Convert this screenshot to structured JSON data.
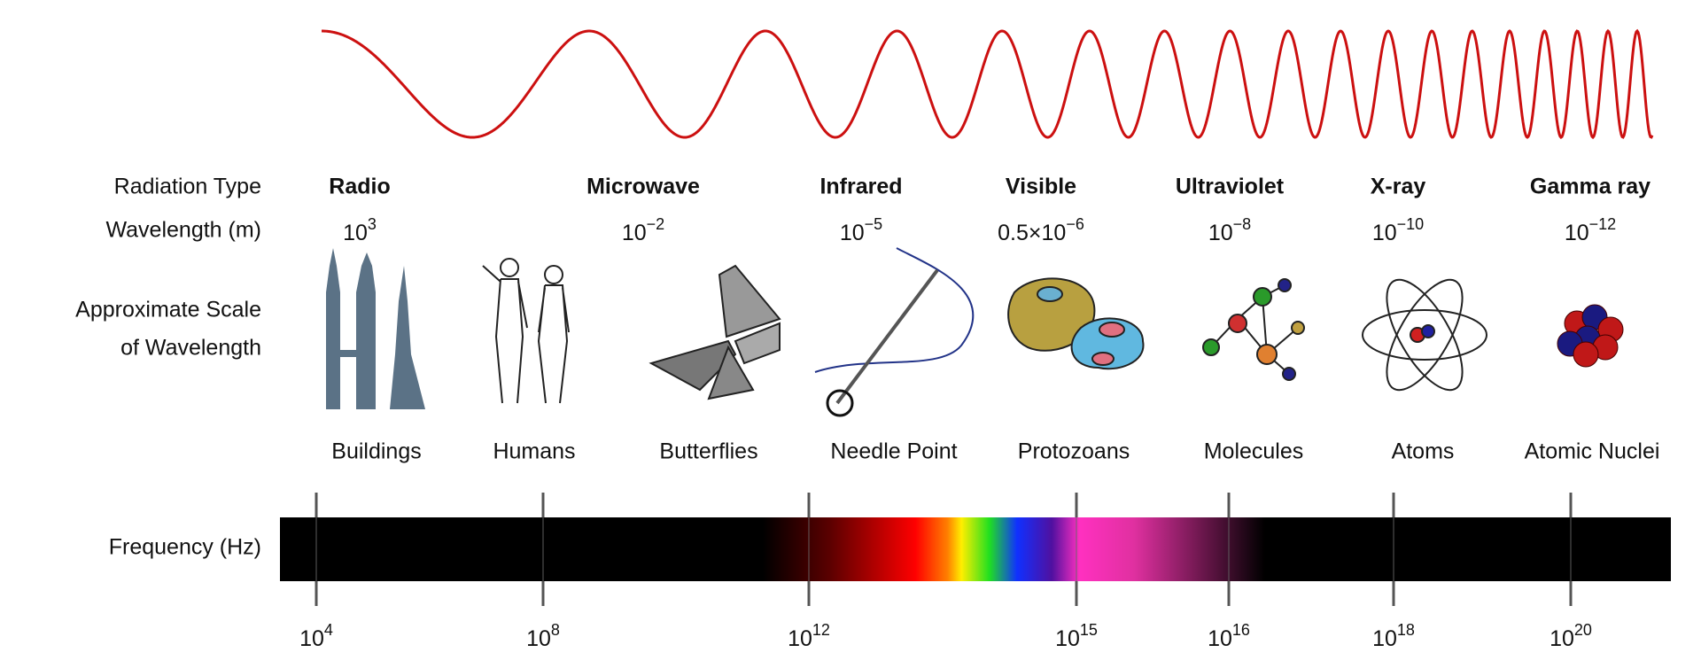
{
  "row_labels": {
    "radiation_type": "Radiation Type",
    "wavelength": "Wavelength (m)",
    "scale": [
      "Approximate Scale",
      "of Wavelength"
    ],
    "frequency": "Frequency (Hz)"
  },
  "bands": [
    {
      "name": "Radio",
      "wavelength": {
        "base": "10",
        "exponent": "3"
      }
    },
    {
      "name": "Microwave",
      "wavelength": {
        "base": "10",
        "exponent": "−2"
      }
    },
    {
      "name": "Infrared",
      "wavelength": {
        "base": "10",
        "exponent": "−5"
      }
    },
    {
      "name": "Visible",
      "wavelength": {
        "base": "0.5×10",
        "exponent": "−6"
      }
    },
    {
      "name": "Ultraviolet",
      "wavelength": {
        "base": "10",
        "exponent": "−8"
      }
    },
    {
      "name": "X-ray",
      "wavelength": {
        "base": "10",
        "exponent": "−10"
      }
    },
    {
      "name": "Gamma ray",
      "wavelength": {
        "base": "10",
        "exponent": "−12"
      }
    }
  ],
  "scale_objects": [
    "Buildings",
    "Humans",
    "Butterflies",
    "Needle Point",
    "Protozoans",
    "Molecules",
    "Atoms",
    "Atomic Nuclei"
  ],
  "frequency_ticks": [
    {
      "base": "10",
      "exponent": "4"
    },
    {
      "base": "10",
      "exponent": "8"
    },
    {
      "base": "10",
      "exponent": "12"
    },
    {
      "base": "10",
      "exponent": "15"
    },
    {
      "base": "10",
      "exponent": "16"
    },
    {
      "base": "10",
      "exponent": "18"
    },
    {
      "base": "10",
      "exponent": "20"
    }
  ]
}
